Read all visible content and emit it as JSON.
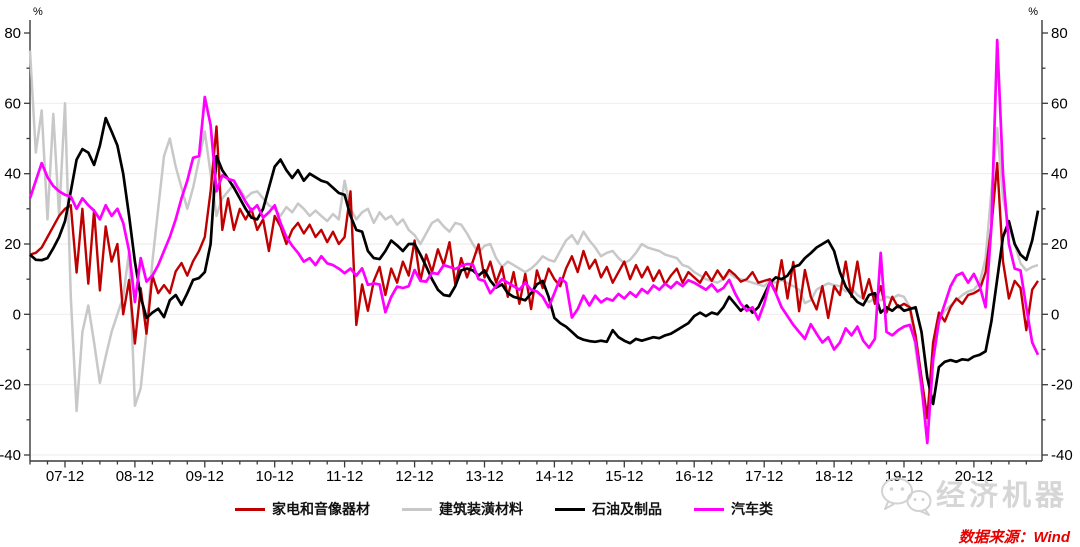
{
  "chart_data": {
    "type": "line",
    "title": "",
    "unit_label": "%",
    "x_start": "2007-06",
    "x_end": "2021-11",
    "x_frequency": "monthly",
    "n_points": 174,
    "ylim": [
      -40,
      80
    ],
    "y_ticks": [
      80,
      60,
      40,
      20,
      0,
      -20,
      -40
    ],
    "y_minor_ticks": [
      70,
      50,
      30,
      10,
      -10,
      -30
    ],
    "grid": "horizontal light gridlines at major y ticks",
    "legend_position": "bottom",
    "x_tick_labels": [
      "07-12",
      "08-12",
      "09-12",
      "10-12",
      "11-12",
      "12-12",
      "13-12",
      "14-12",
      "15-12",
      "16-12",
      "17-12",
      "18-12",
      "19-12",
      "20-12"
    ],
    "x_tick_first_index": 6,
    "x_tick_step": 12,
    "series": [
      {
        "name": "家电和音像器材",
        "slug": "appliances-av",
        "color": "#c00000",
        "stroke_width": 2.4,
        "values": [
          17,
          17.5,
          19,
          22,
          25,
          28,
          30,
          31,
          11.9,
          30,
          8.7,
          29.6,
          6.8,
          25,
          15,
          20,
          0,
          9.8,
          -8.3,
          7.4,
          -5.5,
          11,
          6,
          8.3,
          6,
          12.2,
          14.6,
          11,
          15.1,
          18,
          22,
          35,
          53.4,
          24,
          33,
          24,
          30,
          27,
          30,
          24,
          27,
          18,
          28,
          25,
          20,
          24,
          26,
          23,
          25.5,
          22,
          24,
          20.5,
          23.5,
          20,
          22,
          35,
          -3,
          8.5,
          1,
          9.5,
          13.5,
          5.5,
          13,
          9,
          15,
          11,
          21,
          9.5,
          17,
          12,
          18.5,
          14,
          20.5,
          8.5,
          16,
          10.5,
          15,
          19.9,
          10.5,
          15,
          9,
          13.5,
          5,
          12,
          3,
          11.5,
          1.5,
          12.5,
          7.5,
          13,
          10,
          8,
          13,
          16.5,
          12,
          18,
          13,
          15.5,
          10.5,
          13.5,
          9,
          12,
          15,
          10,
          14,
          10.5,
          13.5,
          9.5,
          12.5,
          8.5,
          11,
          13,
          9,
          12,
          10.5,
          9,
          12,
          9.5,
          12.5,
          10,
          12.6,
          11.2,
          9.3,
          10,
          12,
          9,
          9.5,
          10,
          6,
          15.4,
          4.5,
          14.9,
          0.9,
          12.6,
          5,
          1.4,
          8,
          -1,
          8,
          5.5,
          15,
          5,
          15,
          4.5,
          10,
          3,
          8,
          0.5,
          5,
          2,
          3,
          2,
          -6,
          -18,
          -29.5,
          -8,
          0.5,
          -2,
          2,
          4.5,
          3,
          5.5,
          6,
          7,
          12,
          25,
          43,
          15,
          4.5,
          9.5,
          7.5,
          -4.5,
          7,
          9.5
        ]
      },
      {
        "name": "建筑装潢材料",
        "slug": "building-materials",
        "color": "#c8c8c8",
        "stroke_width": 2.5,
        "values": [
          75,
          46,
          58,
          27,
          57,
          28,
          60,
          5,
          -27.5,
          -5,
          2.5,
          -8,
          -19.5,
          -12,
          -5,
          0,
          5,
          18,
          -26,
          -21,
          -5,
          15,
          30,
          45,
          50,
          42,
          36,
          30,
          36,
          44,
          52,
          40,
          28,
          33,
          35,
          37,
          35.5,
          33,
          34.5,
          35,
          33,
          31,
          30,
          28,
          30.5,
          29,
          31.5,
          30,
          28,
          29.5,
          28,
          26.5,
          28.5,
          27,
          38,
          30,
          27,
          29,
          30,
          26,
          29,
          27,
          28,
          25.5,
          27,
          24,
          22.5,
          20,
          23,
          26,
          27,
          25,
          23.5,
          26,
          25.5,
          23,
          20,
          17.5,
          19.5,
          20,
          16,
          13.5,
          15,
          14,
          13,
          12,
          13,
          14.5,
          16.5,
          15.5,
          15,
          18,
          21,
          22.5,
          20,
          23.5,
          21,
          19,
          16.5,
          17.5,
          18,
          16,
          14.5,
          15.5,
          17.5,
          20,
          19,
          18.5,
          18,
          17,
          16.5,
          16,
          14,
          13.5,
          12,
          11,
          10,
          9.5,
          9,
          10,
          11.7,
          10.5,
          10,
          9.5,
          9,
          8.5,
          8,
          9.5,
          9,
          9.8,
          8.9,
          8,
          7,
          3.2,
          4,
          7,
          8,
          8.8,
          8.3,
          8,
          6.5,
          7.5,
          5.5,
          4.5,
          3.5,
          4.5,
          4,
          5,
          4.5,
          5.5,
          5,
          2,
          -10,
          -22,
          -30.8,
          -12,
          -2,
          1,
          2.5,
          4,
          5.5,
          6.5,
          7,
          9,
          16,
          35,
          53,
          33,
          25,
          20,
          14.5,
          12.5,
          13.5,
          14
        ]
      },
      {
        "name": "石油及制品",
        "slug": "petroleum",
        "color": "#000000",
        "stroke_width": 2.7,
        "values": [
          17,
          15.5,
          15.4,
          16,
          18.8,
          22,
          26.5,
          35,
          44,
          47,
          46,
          42.5,
          48,
          55.8,
          52,
          48,
          40,
          28,
          15,
          5,
          -1,
          0.5,
          1.6,
          -0.8,
          4,
          5.5,
          2.7,
          6,
          9.8,
          10.3,
          12,
          20,
          45,
          41,
          38.5,
          36,
          33,
          30,
          27.5,
          27,
          30,
          36,
          42,
          44,
          41,
          38.8,
          41,
          38,
          40,
          39,
          38,
          37.5,
          36,
          34.5,
          34,
          28,
          24,
          23.5,
          18,
          16,
          15.7,
          18,
          21,
          19.6,
          18,
          20,
          20,
          17,
          13.6,
          10,
          7,
          5.5,
          5.2,
          8,
          12.5,
          13,
          12.5,
          11,
          12.5,
          9.6,
          7.6,
          8.5,
          6,
          5,
          4.5,
          4,
          6,
          8.5,
          9.5,
          5,
          -1,
          -2.5,
          -3.5,
          -5,
          -6.5,
          -7.2,
          -7.6,
          -7.8,
          -7.5,
          -7.8,
          -4.5,
          -6.5,
          -7.5,
          -8.2,
          -7,
          -7.5,
          -7,
          -6.5,
          -6.8,
          -6,
          -5.5,
          -4.5,
          -3.5,
          -2.5,
          -0.5,
          0.5,
          -0.5,
          0.5,
          0,
          2,
          5,
          3,
          1,
          2.5,
          0.5,
          2,
          5.5,
          9,
          10.5,
          10,
          11,
          13.5,
          14,
          16,
          17.4,
          19,
          20,
          21,
          18,
          12,
          7.9,
          5.5,
          3.5,
          2.6,
          5.5,
          6,
          0.5,
          2,
          1,
          2.5,
          1,
          1.5,
          2,
          -5,
          -18,
          -25.5,
          -15,
          -13.5,
          -13,
          -13.5,
          -12.8,
          -13,
          -12,
          -11.5,
          -10.5,
          -2,
          10,
          22,
          26.5,
          20,
          17,
          15.5,
          21,
          29.5
        ]
      },
      {
        "name": "汽车类",
        "slug": "autos",
        "color": "#ff00ff",
        "stroke_width": 2.7,
        "values": [
          33,
          38,
          43,
          39,
          36.5,
          35,
          34,
          33.5,
          30,
          33,
          31,
          29.5,
          27,
          31,
          28,
          30,
          26,
          18,
          3.5,
          16,
          9.3,
          11,
          14,
          18,
          22,
          27,
          33,
          38,
          44.5,
          45,
          61.8,
          53.8,
          35,
          39.5,
          38.5,
          38,
          35,
          32,
          29.5,
          31,
          27.5,
          29,
          31,
          26,
          22,
          19.5,
          17.5,
          15,
          16,
          14,
          16.5,
          14.5,
          14,
          13,
          11.7,
          13,
          11,
          13.1,
          8.4,
          8.8,
          8.5,
          0.6,
          5,
          7.9,
          7.5,
          8,
          12.6,
          9.5,
          9.3,
          11.8,
          11.5,
          14,
          13.5,
          12.9,
          13.8,
          14.3,
          14.2,
          10,
          9.5,
          6,
          8,
          10,
          9,
          8,
          7,
          9,
          7,
          6.5,
          5,
          2,
          6,
          10.3,
          9,
          -0.9,
          1.5,
          5.3,
          2.5,
          5.3,
          3.4,
          4.5,
          3.9,
          5.8,
          4.5,
          6.3,
          5,
          7.2,
          6,
          8.2,
          7,
          8.7,
          7.5,
          9.2,
          8,
          9.7,
          9,
          8,
          7,
          8.5,
          6.5,
          7.5,
          9.8,
          6,
          3,
          1,
          2,
          -1.5,
          3,
          9.3,
          6,
          2,
          -0.5,
          -3,
          -5,
          -7,
          -2.8,
          -5.5,
          -8,
          -6.5,
          -10,
          -8,
          -4,
          -6,
          -3.5,
          -7.5,
          -9.5,
          -7,
          17.5,
          -5,
          -6,
          -4.5,
          -3.5,
          -3,
          -8,
          -20,
          -36.6,
          -13,
          -2,
          3,
          8,
          11,
          11.8,
          9,
          11.5,
          8,
          2,
          25,
          78,
          40,
          20,
          13,
          12.5,
          2,
          -8,
          -11.5
        ]
      }
    ],
    "draw_order": [
      1,
      0,
      2,
      3
    ],
    "colors": {
      "gridline": "#f2eeee",
      "axis": "#3a3a3a",
      "tick_label": "#000000"
    }
  },
  "footer": {
    "source_text": "数据来源：Wind",
    "source_color": "#e60000",
    "watermark_text": "经济机器",
    "watermark_icon": "wechat-bubbles-icon",
    "watermark_color": "#d6d6d6"
  }
}
